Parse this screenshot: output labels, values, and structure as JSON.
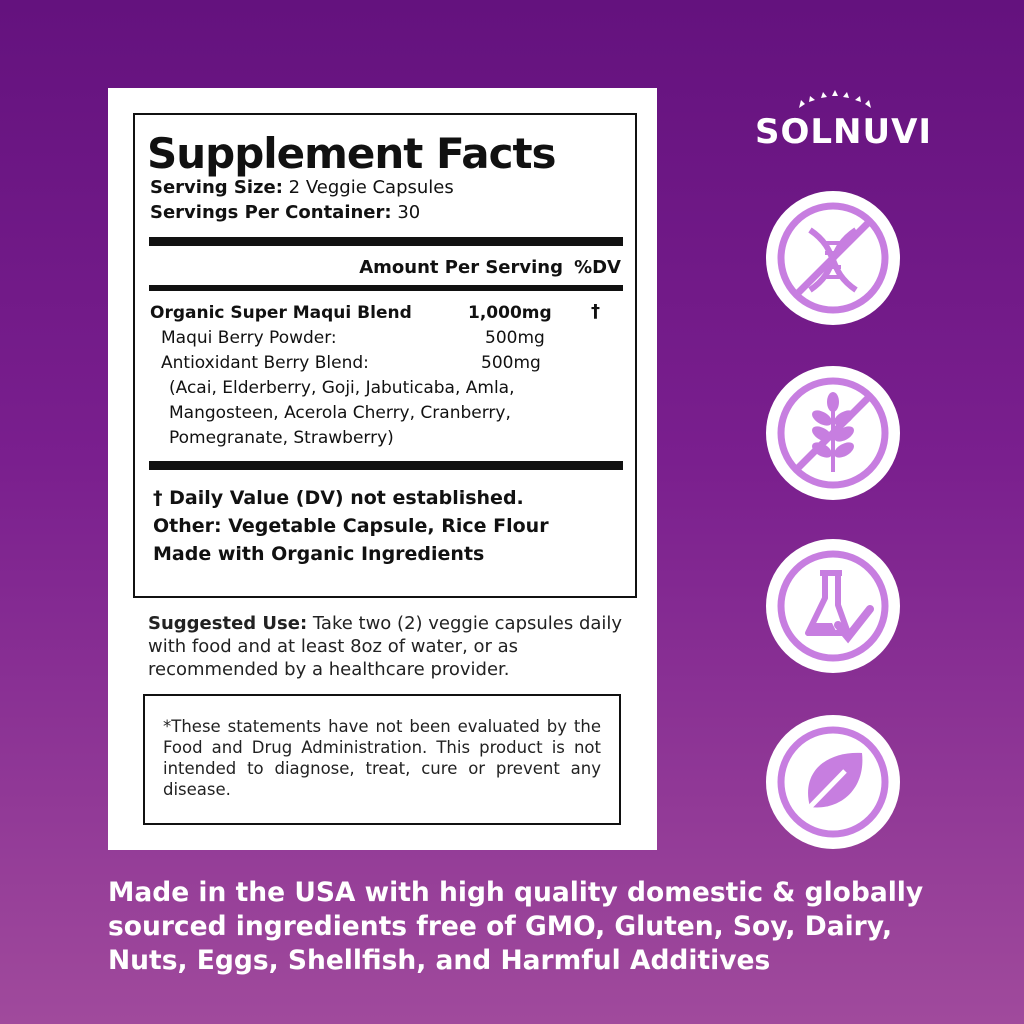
{
  "brand": "SOLNUVI",
  "facts": {
    "title": "Supplement Facts",
    "serving_size_label": "Serving Size:",
    "serving_size": "2 Veggie Capsules",
    "servings_label": "Servings Per Container:",
    "servings": "30",
    "amount_header": "Amount Per Serving",
    "dv_header": "%DV",
    "blend": {
      "name": "Organic Super Maqui Blend",
      "amount": "1,000mg",
      "dv": "†"
    },
    "items": [
      {
        "name": "Maqui Berry Powder:",
        "amount": "500mg"
      },
      {
        "name": "Antioxidant Berry Blend:",
        "amount": "500mg"
      }
    ],
    "berries": [
      "(Acai, Elderberry, Goji, Jabuticaba, Amla,",
      "Mangosteen, Acerola Cherry, Cranberry,",
      "Pomegranate, Strawberry)"
    ],
    "footnote": "† Daily Value (DV) not established.",
    "other": "Other: Vegetable Capsule, Rice Flour",
    "organic": "Made with Organic Ingredients"
  },
  "suggested": {
    "label": "Suggested Use:",
    "text": "Take two (2) veggie capsules daily with food and at least 8oz of water, or as recommended by a healthcare provider."
  },
  "disclaimer": "*These statements have not been evaluated by the Food and Drug Administration. This product is not intended to diagnose, treat, cure or prevent any disease.",
  "icons": [
    "no-gmo-dna-icon",
    "gluten-free-wheat-icon",
    "lab-tested-flask-icon",
    "plant-based-leaf-icon"
  ],
  "colors": {
    "icon_purple": "#c77ee0",
    "bg_top": "#64127e",
    "bg_bottom": "#a04a9c"
  },
  "bottom_text": [
    "Made in the USA with high quality domestic & globally",
    "sourced ingredients free of GMO, Gluten, Soy, Dairy,",
    "Nuts, Eggs, Shellfish, and Harmful Additives"
  ]
}
